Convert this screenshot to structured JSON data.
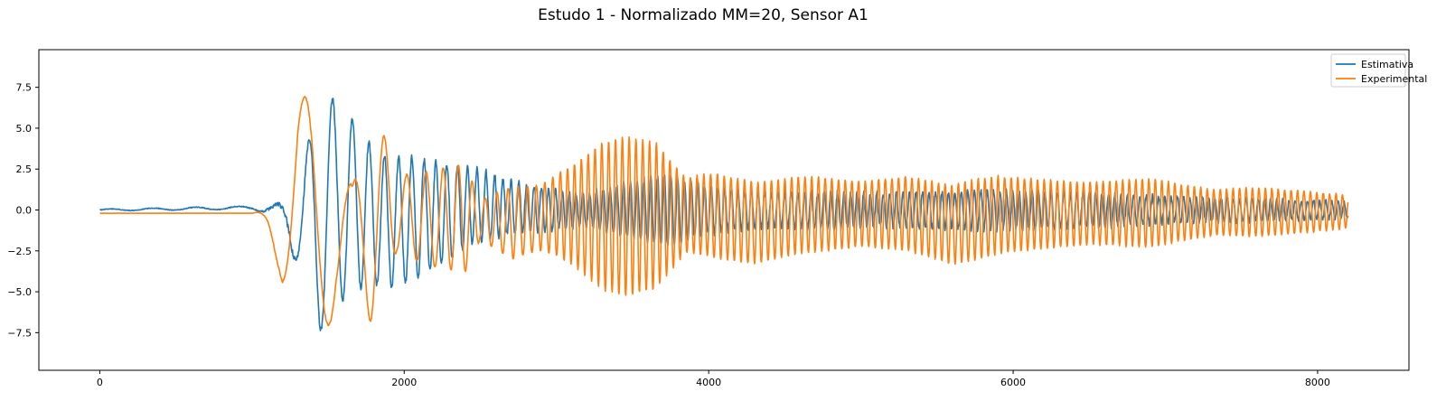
{
  "chart_data": {
    "type": "line",
    "title": "Estudo 1 - Normalizado MM=20, Sensor A1",
    "xlabel": "",
    "ylabel": "",
    "xlim": [
      -400,
      8600
    ],
    "ylim": [
      -9.8,
      9.8
    ],
    "xticks": [
      0,
      2000,
      4000,
      6000,
      8000
    ],
    "xtick_labels": [
      "0",
      "2000",
      "4000",
      "6000",
      "8000"
    ],
    "yticks": [
      -7.5,
      -5.0,
      -2.5,
      0.0,
      2.5,
      5.0,
      7.5
    ],
    "ytick_labels": [
      "−7.5",
      "−5.0",
      "−2.5",
      "0.0",
      "2.5",
      "5.0",
      "7.5"
    ],
    "grid": false,
    "legend_position": "top-right",
    "series": [
      {
        "name": "Estimativa",
        "color": "#1f77b4",
        "envelope": [
          [
            0,
            0.05
          ],
          [
            1000,
            0.1
          ],
          [
            1100,
            0.35
          ],
          [
            1200,
            0.8
          ],
          [
            1320,
            3.0
          ],
          [
            1420,
            6.9
          ],
          [
            1500,
            7.0
          ],
          [
            1650,
            5.4
          ],
          [
            1760,
            4.4
          ],
          [
            1850,
            4.0
          ],
          [
            2050,
            3.8
          ],
          [
            2400,
            2.5
          ],
          [
            2700,
            1.6
          ],
          [
            2900,
            1.3
          ],
          [
            3200,
            1.0
          ],
          [
            3700,
            2.2
          ],
          [
            4000,
            1.5
          ],
          [
            4300,
            1.1
          ],
          [
            4800,
            1.1
          ],
          [
            5200,
            1.0
          ],
          [
            5800,
            1.2
          ],
          [
            6400,
            1.1
          ],
          [
            7000,
            0.8
          ],
          [
            7600,
            0.7
          ],
          [
            8200,
            0.5
          ]
        ],
        "bias": [
          [
            0,
            0
          ],
          [
            1100,
            0.15
          ],
          [
            1200,
            -0.5
          ],
          [
            1350,
            -1.0
          ],
          [
            1600,
            0.5
          ],
          [
            1900,
            -0.8
          ],
          [
            2200,
            -0.3
          ],
          [
            2500,
            0.3
          ],
          [
            3000,
            0
          ],
          [
            8200,
            0
          ]
        ],
        "period": [
          [
            1000,
            280
          ],
          [
            1300,
            190
          ],
          [
            1700,
            110
          ],
          [
            2100,
            80
          ],
          [
            2600,
            55
          ],
          [
            3000,
            45
          ],
          [
            8200,
            40
          ]
        ],
        "noise": 0.35
      },
      {
        "name": "Experimental",
        "color": "#ff7f0e",
        "envelope": [
          [
            0,
            0
          ],
          [
            1000,
            0
          ],
          [
            1100,
            0.6
          ],
          [
            1180,
            2.4
          ],
          [
            1300,
            6.5
          ],
          [
            1420,
            7.6
          ],
          [
            1550,
            5.2
          ],
          [
            1660,
            4.0
          ],
          [
            1780,
            7.0
          ],
          [
            1950,
            2.3
          ],
          [
            2200,
            3.0
          ],
          [
            2400,
            3.3
          ],
          [
            2500,
            1.2
          ],
          [
            2700,
            2.2
          ],
          [
            2900,
            2.0
          ],
          [
            3100,
            3.0
          ],
          [
            3300,
            4.5
          ],
          [
            3450,
            4.9
          ],
          [
            3650,
            4.5
          ],
          [
            3850,
            2.3
          ],
          [
            4050,
            2.6
          ],
          [
            4300,
            2.5
          ],
          [
            4700,
            2.3
          ],
          [
            5000,
            2.0
          ],
          [
            5350,
            2.3
          ],
          [
            5750,
            2.5
          ],
          [
            6100,
            2.2
          ],
          [
            6500,
            1.9
          ],
          [
            6900,
            2.1
          ],
          [
            7300,
            1.4
          ],
          [
            7600,
            1.5
          ],
          [
            7900,
            1.3
          ],
          [
            8200,
            1.0
          ]
        ],
        "bias": [
          [
            0,
            -0.2
          ],
          [
            1000,
            -0.2
          ],
          [
            1100,
            -0.6
          ],
          [
            1200,
            -1.5
          ],
          [
            1300,
            0.8
          ],
          [
            1420,
            -1.3
          ],
          [
            1550,
            -0.9
          ],
          [
            1660,
            -2.6
          ],
          [
            1780,
            0.2
          ],
          [
            1900,
            -0.1
          ],
          [
            2100,
            -0.5
          ],
          [
            2400,
            -0.5
          ],
          [
            2700,
            -0.8
          ],
          [
            3000,
            -0.3
          ],
          [
            3400,
            -0.4
          ],
          [
            4000,
            -0.3
          ],
          [
            4300,
            -0.8
          ],
          [
            4600,
            -0.3
          ],
          [
            5300,
            -0.2
          ],
          [
            5600,
            -0.9
          ],
          [
            5900,
            -0.3
          ],
          [
            6600,
            -0.2
          ],
          [
            8200,
            -0.1
          ]
        ],
        "period": [
          [
            1000,
            330
          ],
          [
            1300,
            340
          ],
          [
            1600,
            300
          ],
          [
            1900,
            150
          ],
          [
            2300,
            100
          ],
          [
            2800,
            60
          ],
          [
            3100,
            45
          ],
          [
            8200,
            42
          ]
        ],
        "noise": 0.1
      }
    ]
  }
}
